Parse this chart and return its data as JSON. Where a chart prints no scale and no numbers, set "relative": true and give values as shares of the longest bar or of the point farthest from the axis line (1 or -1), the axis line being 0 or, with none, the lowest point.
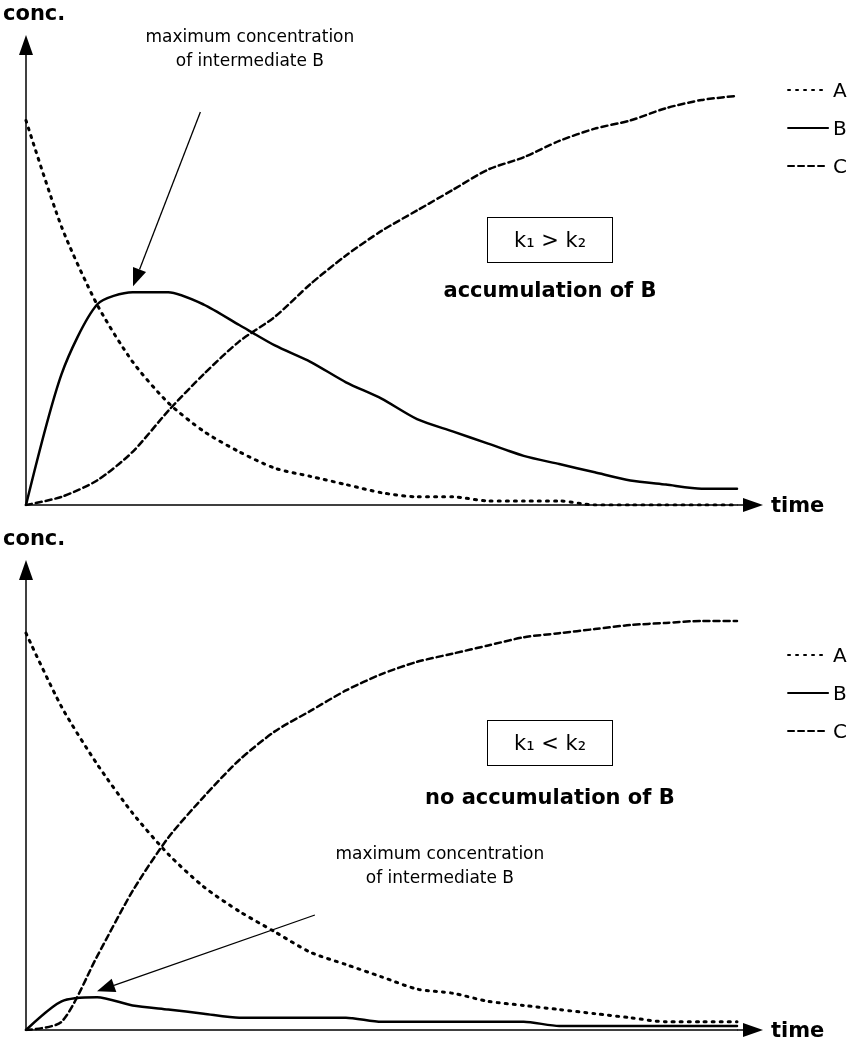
{
  "chart_data": [
    {
      "type": "line",
      "relative": true,
      "xlabel": "time",
      "ylabel": "conc.",
      "grid": false,
      "legend": "top right",
      "marker": "none",
      "categories": [
        null,
        null,
        null,
        null,
        null,
        null,
        null,
        null,
        null,
        null,
        null,
        null,
        null,
        null,
        null,
        null,
        null,
        null,
        null,
        null,
        null
      ],
      "series": [
        {
          "name": "A",
          "color": "#000000",
          "line_style": "dotted",
          "values": [
            0.94,
            0.68,
            0.49,
            0.35,
            0.25,
            0.18,
            0.13,
            0.09,
            0.07,
            0.05,
            0.03,
            0.02,
            0.02,
            0.01,
            0.01,
            0.01,
            0,
            0,
            0,
            0,
            0
          ]
        },
        {
          "name": "B",
          "color": "#000000",
          "line_style": "solid",
          "values": [
            0,
            0.32,
            0.49,
            0.52,
            0.52,
            0.49,
            0.44,
            0.39,
            0.35,
            0.3,
            0.26,
            0.21,
            0.18,
            0.15,
            0.12,
            0.1,
            0.08,
            0.06,
            0.05,
            0.04,
            0.04
          ]
        },
        {
          "name": "C",
          "color": "#000000",
          "line_style": "dashed",
          "values": [
            0,
            0.02,
            0.06,
            0.13,
            0.23,
            0.32,
            0.4,
            0.46,
            0.54,
            0.61,
            0.67,
            0.72,
            0.77,
            0.82,
            0.85,
            0.89,
            0.92,
            0.94,
            0.97,
            0.99,
            1
          ]
        }
      ],
      "annotations": [
        "maximum concentration\nof intermediate B",
        "k₁ > k₂",
        "accumulation of B"
      ]
    },
    {
      "type": "line",
      "relative": true,
      "xlabel": "time",
      "ylabel": "conc.",
      "grid": false,
      "legend": "top right",
      "marker": "none",
      "categories": [
        null,
        null,
        null,
        null,
        null,
        null,
        null,
        null,
        null,
        null,
        null,
        null,
        null,
        null,
        null,
        null,
        null,
        null,
        null,
        null,
        null
      ],
      "series": [
        {
          "name": "A",
          "color": "#000000",
          "line_style": "dotted",
          "values": [
            0.97,
            0.79,
            0.65,
            0.53,
            0.43,
            0.35,
            0.29,
            0.24,
            0.19,
            0.16,
            0.13,
            0.1,
            0.09,
            0.07,
            0.06,
            0.05,
            0.04,
            0.03,
            0.02,
            0.02,
            0.02
          ]
        },
        {
          "name": "B",
          "color": "#000000",
          "line_style": "solid",
          "values": [
            0,
            0.07,
            0.08,
            0.06,
            0.05,
            0.04,
            0.03,
            0.03,
            0.03,
            0.03,
            0.02,
            0.02,
            0.02,
            0.02,
            0.02,
            0.01,
            0.01,
            0.01,
            0.01,
            0.01,
            0.01
          ]
        },
        {
          "name": "C",
          "color": "#000000",
          "line_style": "dashed",
          "values": [
            0,
            0.02,
            0.18,
            0.34,
            0.47,
            0.57,
            0.66,
            0.73,
            0.78,
            0.83,
            0.87,
            0.9,
            0.92,
            0.94,
            0.96,
            0.97,
            0.98,
            0.99,
            0.995,
            1,
            1
          ]
        }
      ],
      "annotations": [
        "maximum concentration\nof intermediate B",
        "k₁ < k₂",
        "no accumulation of B"
      ]
    }
  ]
}
